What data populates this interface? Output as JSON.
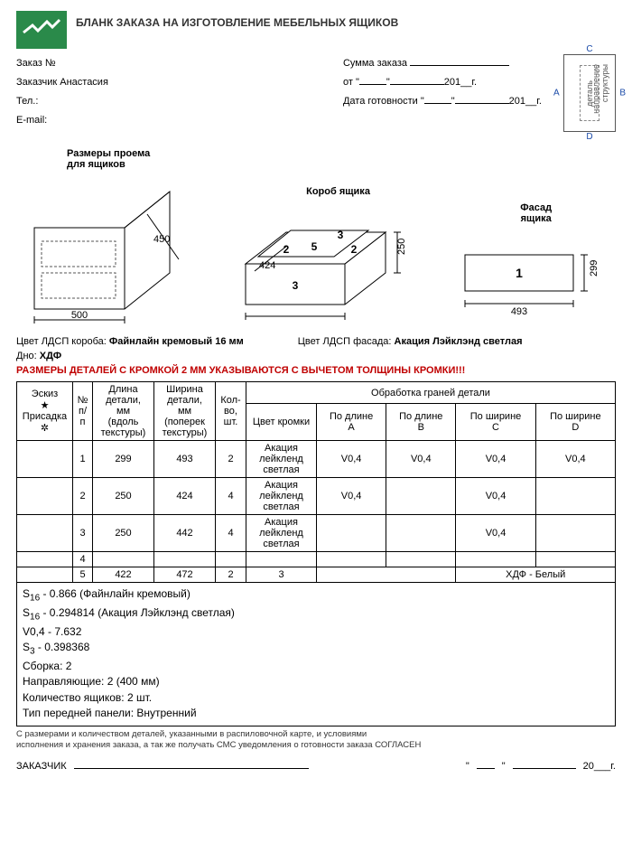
{
  "title": "БЛАНК ЗАКАЗА НА ИЗГОТОВЛЕНИЕ МЕБЕЛЬНЫХ ЯЩИКОВ",
  "fields": {
    "order_no_label": "Заказ №",
    "customer_label": "Заказчик",
    "customer_value": "Анастасия",
    "tel_label": "Тел.:",
    "email_label": "E-mail:",
    "sum_label": "Сумма заказа",
    "from_label": "от",
    "year_stub": "201__г.",
    "ready_label": "Дата готовности"
  },
  "structure_box": {
    "A": "A",
    "B": "B",
    "C": "C",
    "D": "D",
    "vert1": "деталь",
    "vert2": "направление",
    "vert3": "структуры"
  },
  "diagrams": {
    "opening": {
      "title": "Размеры проема\nдля ящиков",
      "w": "500",
      "h": "450"
    },
    "box": {
      "title": "Короб ящика",
      "w": "424",
      "h": "250",
      "n2": "2",
      "n3": "3",
      "n5": "5"
    },
    "facade": {
      "title": "Фасад\nящика",
      "w": "493",
      "h": "299",
      "n1": "1"
    }
  },
  "colors": {
    "ldsp_box_label": "Цвет ЛДСП короба:",
    "ldsp_box_value": "Файнлайн кремовый 16 мм",
    "ldsp_facade_label": "Цвет ЛДСП фасада:",
    "ldsp_facade_value": "Акация Лэйклэнд светлая",
    "bottom_label": "Дно:",
    "bottom_value": "ХДФ"
  },
  "redline": "РАЗМЕРЫ ДЕТАЛЕЙ С КРОМКОЙ 2 ММ УКАЗЫВАЮТСЯ С ВЫЧЕТОМ ТОЛЩИНЫ КРОМКИ!!!",
  "table": {
    "headers": {
      "sketch": "Эскиз",
      "star": "★",
      "prisadka": "Присадка",
      "gear": "✲",
      "np": "№\nп/\nп",
      "len": "Длина\nдетали,\nмм\n(вдоль\nтекстуры)",
      "wid": "Ширина\nдетали,\nмм\n(поперек\nтекстуры)",
      "qty": "Кол-\nво,\nшт.",
      "edges": "Обработка граней детали",
      "edge_color": "Цвет кромки",
      "lenA": "По длине\nA",
      "lenB": "По длине\nB",
      "widC": "По ширине\nC",
      "widD": "По ширине\nD"
    },
    "rows": [
      {
        "n": "1",
        "len": "299",
        "wid": "493",
        "qty": "2",
        "color": "Акация\nлейкленд\nсветлая",
        "A": "V0,4",
        "B": "V0,4",
        "C": "V0,4",
        "D": "V0,4"
      },
      {
        "n": "2",
        "len": "250",
        "wid": "424",
        "qty": "4",
        "color": "Акация\nлейкленд\nсветлая",
        "A": "V0,4",
        "B": "",
        "C": "V0,4",
        "D": ""
      },
      {
        "n": "3",
        "len": "250",
        "wid": "442",
        "qty": "4",
        "color": "Акация\nлейкленд\nсветлая",
        "A": "",
        "B": "",
        "C": "V0,4",
        "D": ""
      },
      {
        "n": "4",
        "len": "",
        "wid": "",
        "qty": "",
        "color": "",
        "A": "",
        "B": "",
        "C": "",
        "D": ""
      },
      {
        "n": "5",
        "len": "422",
        "wid": "472",
        "qty": "2",
        "color": "3",
        "A": "",
        "B": "",
        "C": "ХДФ - Белый",
        "D": "",
        "merge_cd": true,
        "merge_ab": true
      }
    ]
  },
  "summary": [
    "S₁₆ - 0.866 (Файнлайн кремовый)",
    "S₁₆ - 0.294814 (Акация Лэйклэнд светлая)",
    "V0,4 - 7.632",
    "S₃ - 0.398368",
    "Сборка: 2",
    "Направляющие: 2 (400 мм)",
    "Количество ящиков: 2 шт.",
    "Тип передней панели: Внутренний"
  ],
  "footnote": "С размерами и количеством деталей, указанными в распиловочной карте, и условиями\nисполнения и хранения заказа, а так же получать СМС уведомления о готовности заказа СОГЛАСЕН",
  "sign": {
    "label": "ЗАКАЗЧИК",
    "year": "20___г."
  }
}
